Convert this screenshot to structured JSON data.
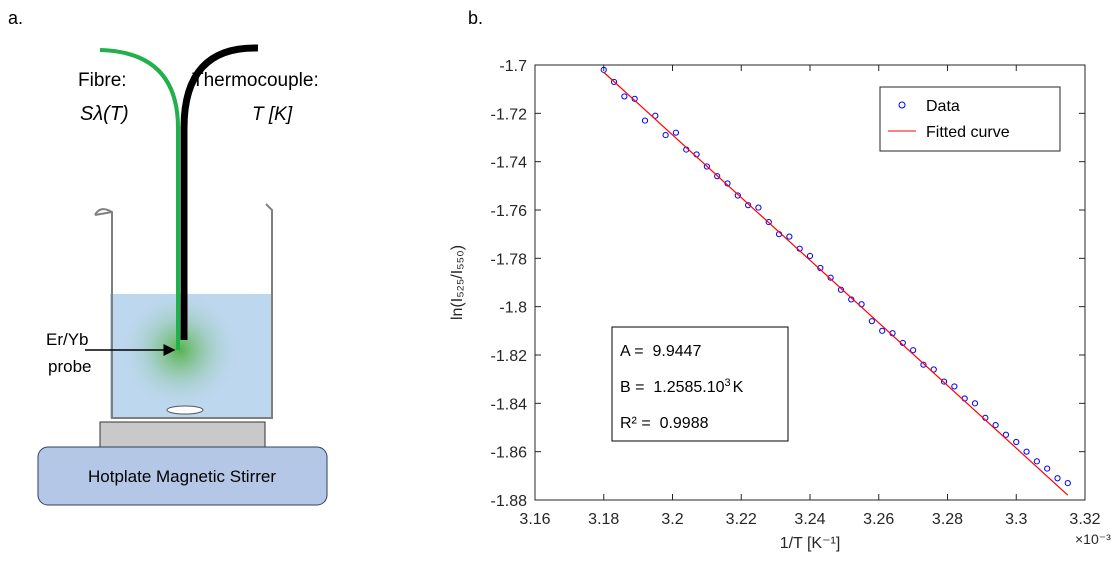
{
  "diagram": {
    "panel_label": "a.",
    "fibre_label": "Fibre:",
    "fibre_symbol": "Sλ(T)",
    "thermocouple_label": "Thermocouple:",
    "thermocouple_symbol": "T [K]",
    "probe_label": [
      "Er/Yb",
      "probe"
    ],
    "stirrer_label": "Hotplate Magnetic Stirrer"
  },
  "chart_data": {
    "type": "scatter",
    "panel_label": "b.",
    "x_label": "1/T [K⁻¹]",
    "y_label": "ln(I₅₂₅/I₅₅₀)",
    "x_multiplier": "×10⁻³",
    "xlim": [
      3.16,
      3.32
    ],
    "xticks": [
      3.16,
      3.18,
      3.2,
      3.22,
      3.24,
      3.26,
      3.28,
      3.3,
      3.32
    ],
    "ylim": [
      -1.88,
      -1.7
    ],
    "yticks": [
      -1.7,
      -1.72,
      -1.74,
      -1.76,
      -1.78,
      -1.8,
      -1.82,
      -1.84,
      -1.86,
      -1.88
    ],
    "legend": "upper right",
    "series": [
      {
        "name": "Data",
        "color": "#0000ff",
        "x": [
          3.18,
          3.183,
          3.186,
          3.189,
          3.192,
          3.195,
          3.198,
          3.201,
          3.204,
          3.207,
          3.21,
          3.213,
          3.216,
          3.219,
          3.222,
          3.225,
          3.228,
          3.231,
          3.234,
          3.237,
          3.24,
          3.243,
          3.246,
          3.249,
          3.252,
          3.255,
          3.258,
          3.261,
          3.264,
          3.267,
          3.27,
          3.273,
          3.276,
          3.279,
          3.282,
          3.285,
          3.288,
          3.291,
          3.294,
          3.297,
          3.3,
          3.303,
          3.306,
          3.309,
          3.312,
          3.315
        ],
        "values": [
          -1.702,
          -1.707,
          -1.713,
          -1.714,
          -1.723,
          -1.721,
          -1.729,
          -1.728,
          -1.735,
          -1.737,
          -1.742,
          -1.746,
          -1.749,
          -1.754,
          -1.758,
          -1.759,
          -1.765,
          -1.77,
          -1.771,
          -1.776,
          -1.779,
          -1.784,
          -1.788,
          -1.793,
          -1.797,
          -1.799,
          -1.806,
          -1.81,
          -1.811,
          -1.815,
          -1.818,
          -1.824,
          -1.826,
          -1.831,
          -1.833,
          -1.838,
          -1.84,
          -1.846,
          -1.849,
          -1.853,
          -1.856,
          -1.86,
          -1.864,
          -1.867,
          -1.871,
          -1.873
        ]
      },
      {
        "name": "Fitted curve",
        "color": "#ff0000",
        "type": "line",
        "x": [
          3.18,
          3.315
        ],
        "values": [
          -1.703,
          -1.878
        ]
      }
    ],
    "annotations": [
      "A =  9.9447",
      "B =  1.2585.10",
      "3",
      "K",
      "R² =  0.9988"
    ]
  }
}
